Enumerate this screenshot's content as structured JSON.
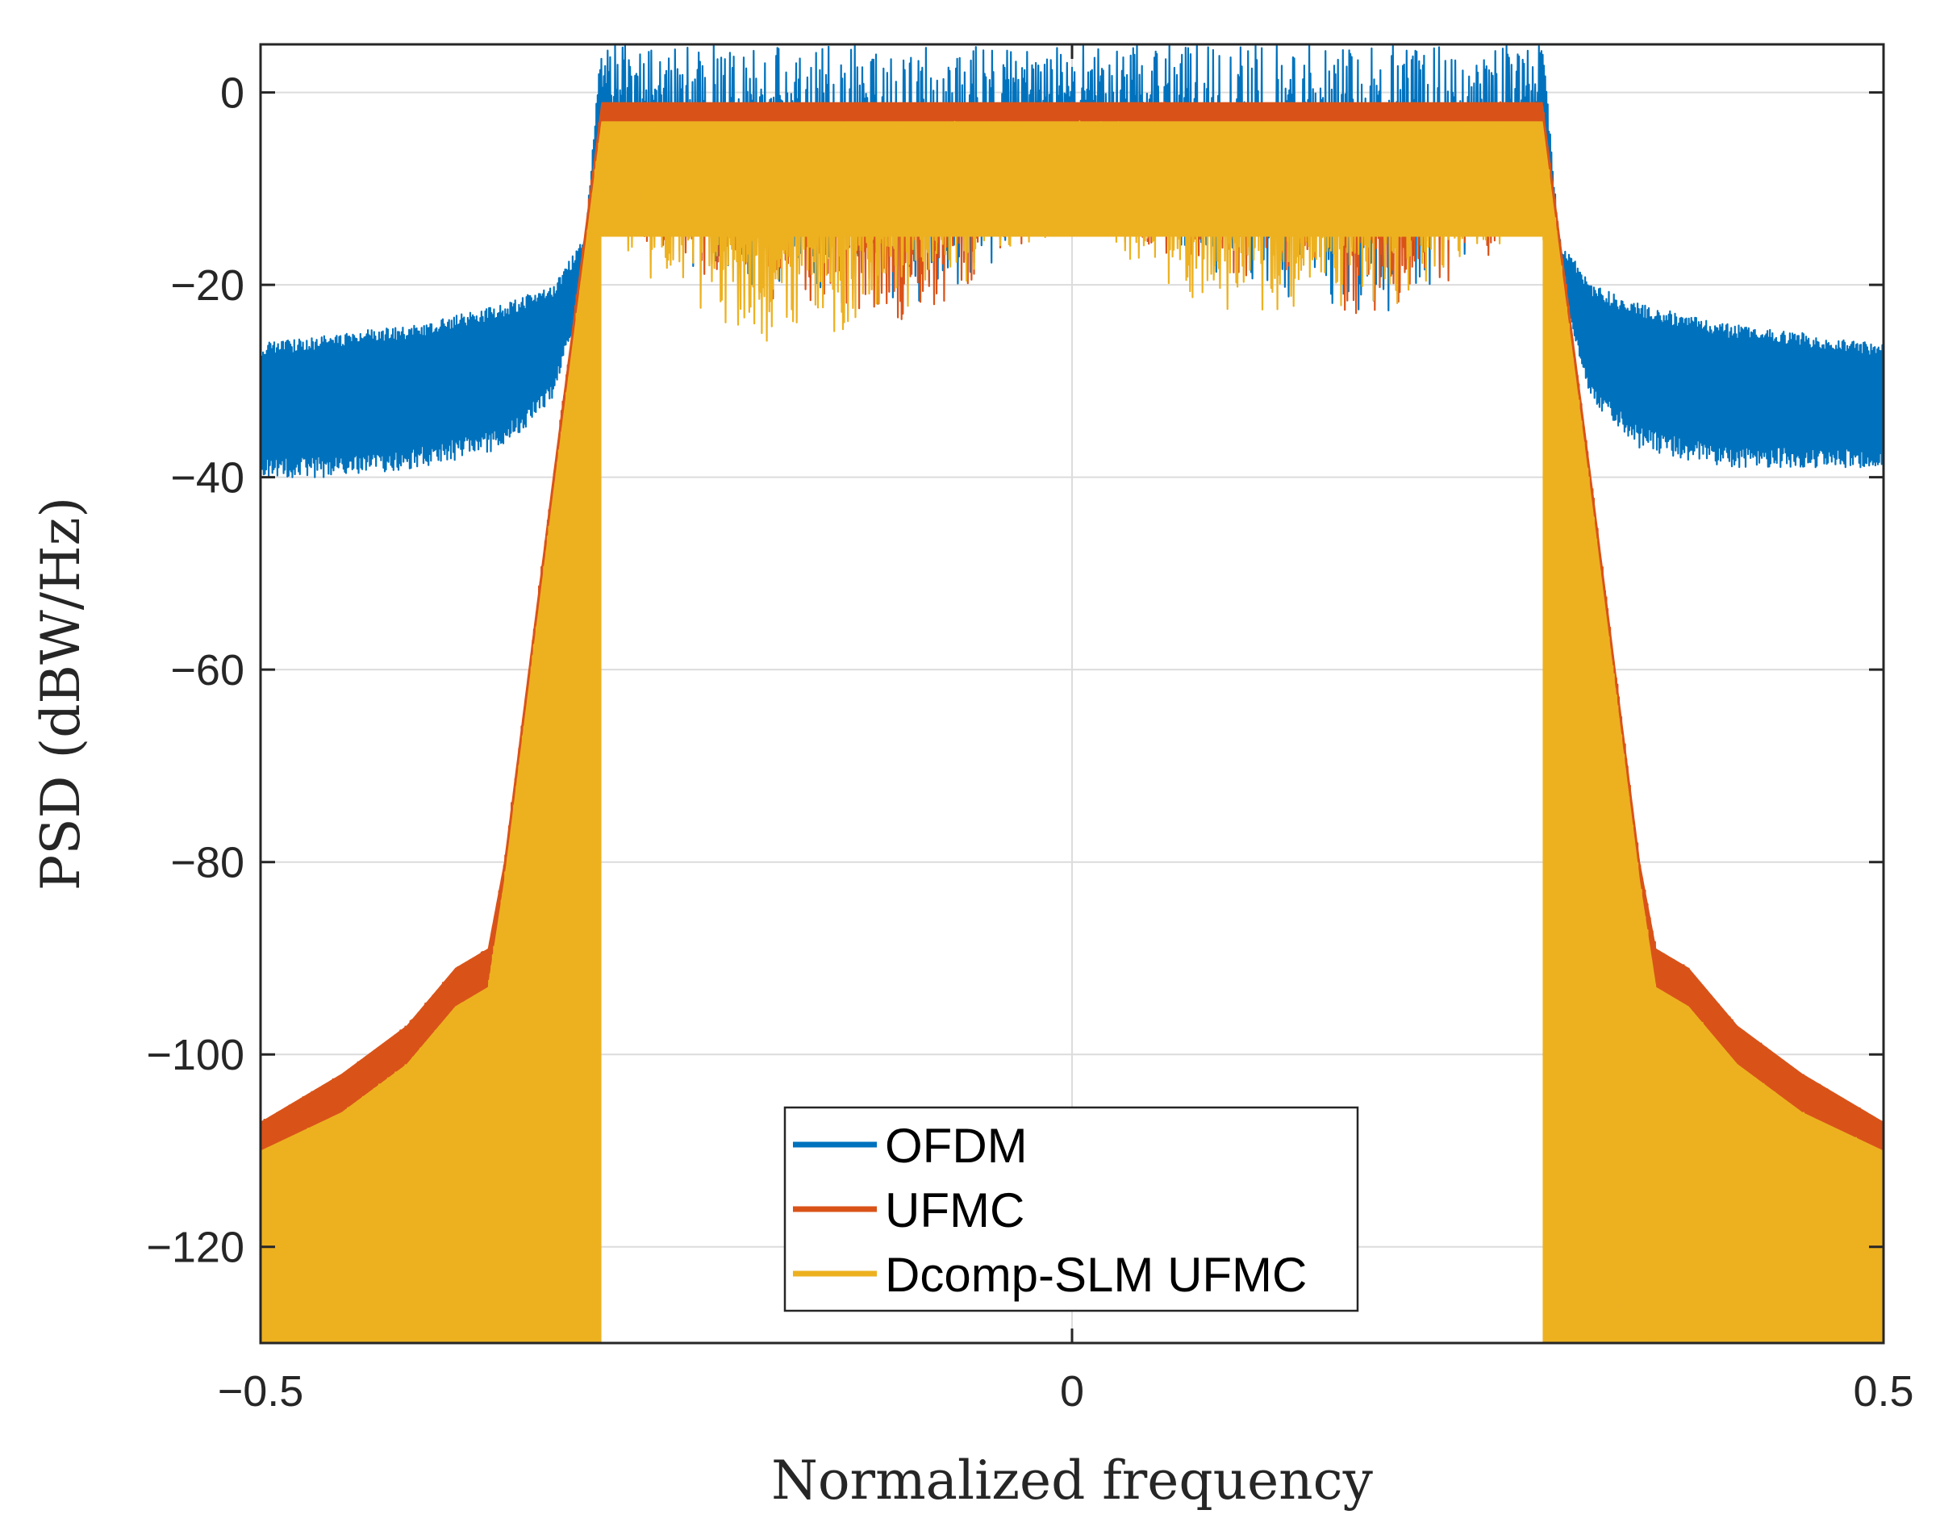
{
  "chart_data": {
    "type": "line",
    "title": "",
    "xlabel": "Normalized frequency",
    "ylabel": "PSD (dBW/Hz)",
    "xlim": [
      -0.5,
      0.5
    ],
    "ylim": [
      -130,
      5
    ],
    "xticks": [
      -0.5,
      0,
      0.5
    ],
    "xtick_labels": [
      "−0.5",
      "0",
      "0.5"
    ],
    "yticks": [
      0,
      -20,
      -40,
      -60,
      -80,
      -100,
      -120
    ],
    "ytick_labels": [
      "0",
      "−20",
      "−40",
      "−60",
      "−80",
      "−100",
      "−120"
    ],
    "grid": true,
    "legend_location": "bottom-center",
    "series": [
      {
        "name": "OFDM",
        "color": "#0072BD",
        "envelope": {
          "x": [
            -0.5,
            -0.45,
            -0.4,
            -0.35,
            -0.32,
            -0.3,
            -0.29,
            -0.2,
            -0.1,
            0,
            0.1,
            0.2,
            0.29,
            0.3,
            0.32,
            0.35,
            0.4,
            0.45,
            0.5
          ],
          "upper": [
            -26,
            -25,
            -24,
            -22,
            -20,
            -15,
            5,
            5,
            5,
            5,
            5,
            5,
            5,
            -15,
            -20,
            -22,
            -24,
            -25,
            -26
          ],
          "lower": [
            -40,
            -40,
            -39,
            -37,
            -32,
            -20,
            -12,
            -22,
            -24,
            -13,
            -21,
            -24,
            -12,
            -20,
            -32,
            -37,
            -39,
            -39,
            -39
          ]
        }
      },
      {
        "name": "UFMC",
        "color": "#D95319",
        "envelope": {
          "x": [
            -0.5,
            -0.45,
            -0.41,
            -0.38,
            -0.36,
            -0.35,
            -0.32,
            -0.29,
            -0.2,
            -0.1,
            0,
            0.1,
            0.2,
            0.29,
            0.32,
            0.35,
            0.36,
            0.38,
            0.41,
            0.45,
            0.5
          ],
          "upper": [
            -107,
            -102,
            -97,
            -91,
            -89,
            -80,
            -40,
            -1,
            -1,
            -1,
            -1,
            -1,
            -1,
            -1,
            -40,
            -80,
            -89,
            -91,
            -97,
            -102,
            -107
          ],
          "lower": [
            -130,
            -130,
            -130,
            -130,
            -130,
            -130,
            -130,
            -14,
            -22,
            -25,
            -13,
            -21,
            -24,
            -14,
            -130,
            -130,
            -130,
            -130,
            -130,
            -130,
            -130
          ]
        }
      },
      {
        "name": "Dcomp-SLM UFMC",
        "color": "#EDB120",
        "envelope": {
          "x": [
            -0.5,
            -0.45,
            -0.41,
            -0.38,
            -0.36,
            -0.35,
            -0.32,
            -0.29,
            -0.2,
            -0.1,
            0,
            0.1,
            0.2,
            0.29,
            0.32,
            0.35,
            0.36,
            0.38,
            0.41,
            0.45,
            0.5
          ],
          "upper": [
            -110,
            -106,
            -101,
            -95,
            -93,
            -82,
            -42,
            -3,
            -3,
            -3,
            -3,
            -3,
            -3,
            -3,
            -42,
            -82,
            -93,
            -95,
            -101,
            -106,
            -110
          ],
          "lower": [
            -130,
            -130,
            -130,
            -130,
            -130,
            -130,
            -130,
            -15,
            -28,
            -23,
            -14,
            -24,
            -22,
            -15,
            -130,
            -130,
            -130,
            -130,
            -130,
            -130,
            -130
          ]
        }
      }
    ]
  }
}
